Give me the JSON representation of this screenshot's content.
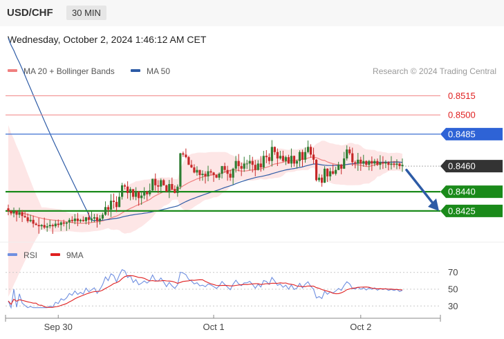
{
  "header": {
    "pair": "USD/CHF",
    "timeframe": "30 MIN"
  },
  "timestamp": "Wednesday, October 2, 2024 1:46:12 AM CET",
  "credit": "Research © 2024 Trading Central",
  "colors": {
    "ma20": "#f08080",
    "ma50": "#2d5ba6",
    "band_fill": "#fde2e2",
    "up": "#2e7d32",
    "down": "#c62828",
    "level_resistance": "#f08080",
    "level_blue": "#3b6fd1",
    "level_green": "#1a8a1a",
    "rsi": "#6f8fe0",
    "rsi_ma": "#e02020",
    "arrow": "#2d5ba6"
  },
  "chart_data": [
    {
      "type": "candlestick",
      "legend": [
        {
          "label": "MA 20 + Bollinger Bands",
          "color": "#f08080"
        },
        {
          "label": "MA 50",
          "color": "#2d5ba6"
        }
      ],
      "ylim": [
        0.8406,
        0.8526
      ],
      "x_ticks": [
        {
          "label": "Sep 30",
          "index": 18
        },
        {
          "label": "Oct 1",
          "index": 74
        },
        {
          "label": "Oct 2",
          "index": 127
        }
      ],
      "levels": [
        {
          "value": 0.8515,
          "label": "0.8515",
          "style": "resistance"
        },
        {
          "value": 0.85,
          "label": "0.8500",
          "style": "resistance"
        },
        {
          "value": 0.8485,
          "label": "0.8485",
          "style": "blue"
        },
        {
          "value": 0.846,
          "label": "0.8460",
          "style": "current"
        },
        {
          "value": 0.844,
          "label": "0.8440",
          "style": "green"
        },
        {
          "value": 0.8425,
          "label": "0.8425",
          "style": "green"
        }
      ],
      "forecast_arrow": {
        "from": 0.8457,
        "to": 0.8425
      },
      "closes": [
        0.8425,
        0.8423,
        0.8425,
        0.8422,
        0.8424,
        0.8421,
        0.842,
        0.8417,
        0.8418,
        0.8415,
        0.8414,
        0.8413,
        0.8414,
        0.8412,
        0.8413,
        0.8414,
        0.8413,
        0.8415,
        0.8414,
        0.8416,
        0.8415,
        0.8416,
        0.8418,
        0.8417,
        0.8419,
        0.8417,
        0.8418,
        0.8417,
        0.842,
        0.8418,
        0.8419,
        0.842,
        0.8417,
        0.8419,
        0.8422,
        0.8428,
        0.8426,
        0.8433,
        0.8432,
        0.8428,
        0.8436,
        0.8445,
        0.8444,
        0.8439,
        0.8442,
        0.8436,
        0.844,
        0.8435,
        0.8437,
        0.844,
        0.8438,
        0.8441,
        0.845,
        0.8445,
        0.8444,
        0.8449,
        0.8445,
        0.844,
        0.8446,
        0.8442,
        0.8439,
        0.8444,
        0.847,
        0.8469,
        0.8467,
        0.8461,
        0.8459,
        0.8455,
        0.8457,
        0.8453,
        0.8454,
        0.8452,
        0.8456,
        0.8455,
        0.8453,
        0.8451,
        0.8454,
        0.846,
        0.8457,
        0.8454,
        0.8451,
        0.8458,
        0.8464,
        0.846,
        0.8458,
        0.8462,
        0.8462,
        0.8464,
        0.8461,
        0.8457,
        0.8462,
        0.8459,
        0.8468,
        0.8467,
        0.8464,
        0.8475,
        0.8471,
        0.8466,
        0.8468,
        0.8464,
        0.8467,
        0.8462,
        0.8468,
        0.8462,
        0.8464,
        0.8471,
        0.8465,
        0.8471,
        0.8475,
        0.8469,
        0.8465,
        0.8449,
        0.8451,
        0.8447,
        0.8458,
        0.8452,
        0.8456,
        0.8454,
        0.8457,
        0.8461,
        0.8458,
        0.8466,
        0.8473,
        0.847,
        0.8463,
        0.8462,
        0.8465,
        0.8462,
        0.8464,
        0.8461,
        0.8464,
        0.8462,
        0.8464,
        0.8461,
        0.8463,
        0.8462,
        0.8463,
        0.8461,
        0.8462,
        0.8461,
        0.8462,
        0.846,
        0.8461
      ]
    },
    {
      "type": "line",
      "legend": [
        {
          "label": "RSI",
          "color": "#6f8fe0"
        },
        {
          "label": "9MA",
          "color": "#e02020"
        }
      ],
      "ylim": [
        22,
        78
      ],
      "y_ticks": [
        "70",
        "50",
        "30"
      ],
      "y_tick_values": [
        70,
        50,
        30
      ]
    }
  ]
}
